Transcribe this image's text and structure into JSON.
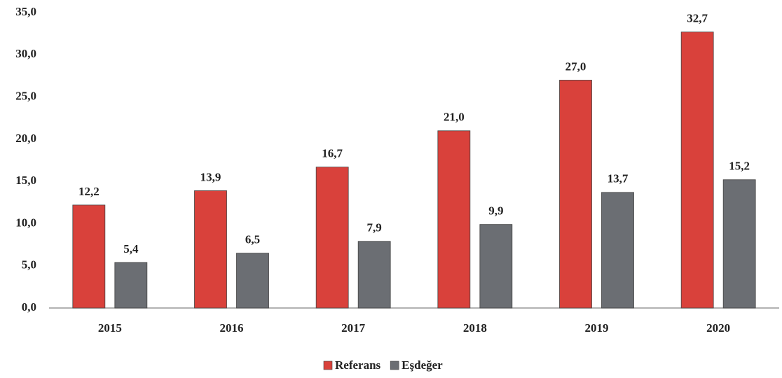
{
  "chart_data": {
    "type": "bar",
    "categories": [
      "2015",
      "2016",
      "2017",
      "2018",
      "2019",
      "2020"
    ],
    "series": [
      {
        "name": "Referans",
        "color": "#d9413b",
        "values": [
          12.2,
          13.9,
          16.7,
          21.0,
          27.0,
          32.7
        ],
        "value_labels": [
          "12,2",
          "13,9",
          "16,7",
          "21,0",
          "27,0",
          "32,7"
        ]
      },
      {
        "name": "Eşdeğer",
        "color": "#6b6e73",
        "values": [
          5.4,
          6.5,
          7.9,
          9.9,
          13.7,
          15.2
        ],
        "value_labels": [
          "5,4",
          "6,5",
          "7,9",
          "9,9",
          "13,7",
          "15,2"
        ]
      }
    ],
    "ylim": [
      0,
      35
    ],
    "yticks": [
      {
        "value": 0,
        "label": "0,0"
      },
      {
        "value": 5,
        "label": "5,0"
      },
      {
        "value": 10,
        "label": "10,0"
      },
      {
        "value": 15,
        "label": "15,0"
      },
      {
        "value": 20,
        "label": "20,0"
      },
      {
        "value": 25,
        "label": "25,0"
      },
      {
        "value": 30,
        "label": "30,0"
      },
      {
        "value": 35,
        "label": "35,0"
      }
    ],
    "grid": false,
    "legend": "bottom"
  }
}
